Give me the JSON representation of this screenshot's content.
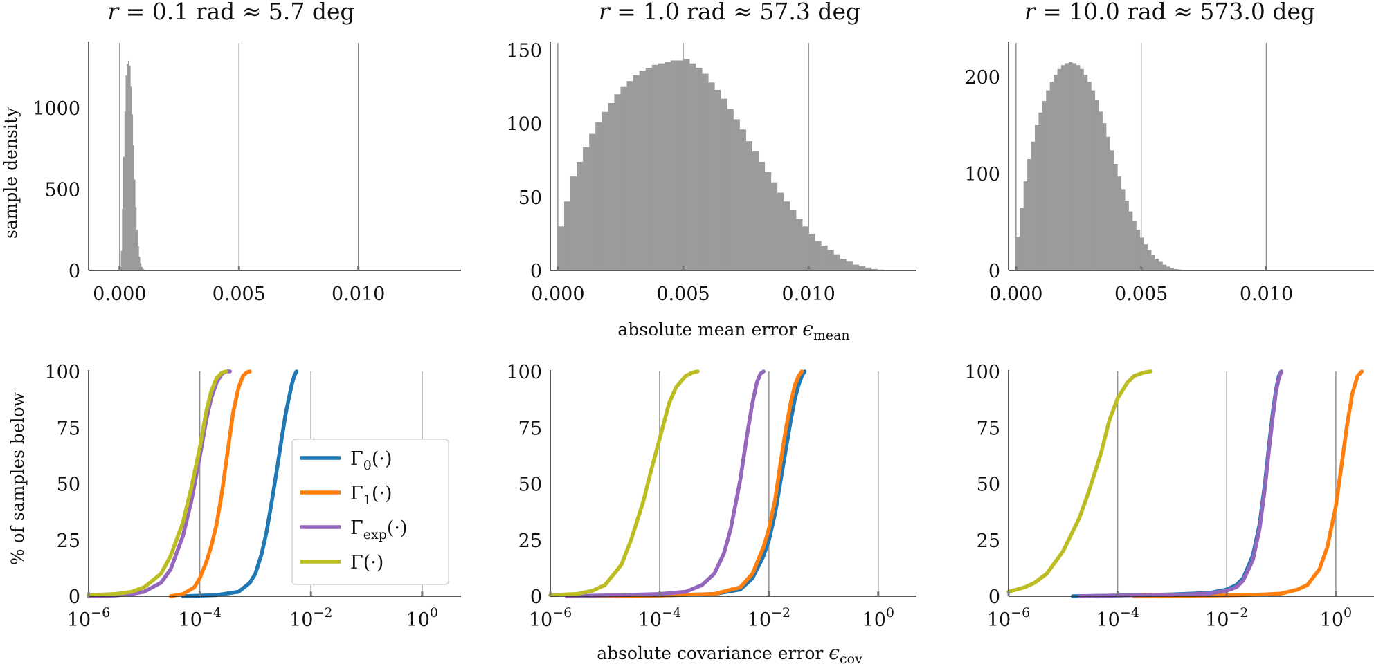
{
  "figure": {
    "shared_xlabel_top": "absolute mean error ",
    "shared_xlabel_top_symbol": "ϵ",
    "shared_xlabel_top_sub": "mean",
    "shared_xlabel_bottom": "absolute covariance error ",
    "shared_xlabel_bottom_symbol": "ϵ",
    "shared_xlabel_bottom_sub": "cov",
    "ylabel_top": "sample density",
    "ylabel_bottom": "% of samples below"
  },
  "colors": {
    "bar": "#9b9b9b",
    "gamma0": "#1f77b4",
    "gamma1": "#ff7f0e",
    "gammaexp": "#9467bd",
    "gamma": "#bcbd22"
  },
  "columns": [
    {
      "title_var": "r",
      "title_rest": " = 0.1 rad ≈ 5.7 deg"
    },
    {
      "title_var": "r",
      "title_rest": " = 1.0 rad ≈ 57.3 deg"
    },
    {
      "title_var": "r",
      "title_rest": " = 10.0 rad ≈ 573.0 deg"
    }
  ],
  "legend": [
    {
      "main": "Γ",
      "sub": "0",
      "arg": "(·)",
      "color_key": "gamma0"
    },
    {
      "main": "Γ",
      "sub": "1",
      "arg": "(·)",
      "color_key": "gamma1"
    },
    {
      "main": "Γ",
      "sub": "exp",
      "arg": "(·)",
      "color_key": "gammaexp"
    },
    {
      "main": "Γ",
      "sub": "",
      "arg": "(·)",
      "color_key": "gamma"
    }
  ],
  "chart_data": [
    {
      "type": "bar",
      "panel": "top-left",
      "title": "r = 0.1 rad ≈ 5.7 deg",
      "ylabel": "sample density",
      "xlim": [
        -0.0013,
        0.0143
      ],
      "ylim": [
        0,
        1400
      ],
      "xticks": [
        0.0,
        0.005,
        0.01
      ],
      "xtick_labels": [
        "0.000",
        "0.005",
        "0.010"
      ],
      "yticks": [
        0,
        500,
        1000
      ],
      "ytick_labels": [
        "0",
        "500",
        "1000"
      ],
      "bin_width": 5e-05,
      "bin_start": 0.0,
      "values": [
        10,
        120,
        380,
        700,
        980,
        1200,
        1270,
        1290,
        1260,
        1130,
        960,
        770,
        560,
        390,
        250,
        150,
        85,
        45,
        22,
        10,
        5,
        2
      ]
    },
    {
      "type": "bar",
      "panel": "top-middle",
      "title": "r = 1.0 rad ≈ 57.3 deg",
      "ylabel": "",
      "xlim": [
        -0.0003,
        0.0143
      ],
      "ylim": [
        0,
        155
      ],
      "xticks": [
        0.0,
        0.005,
        0.01
      ],
      "xtick_labels": [
        "0.000",
        "0.005",
        "0.010"
      ],
      "yticks": [
        0,
        50,
        100,
        150
      ],
      "ytick_labels": [
        "0",
        "50",
        "100",
        "150"
      ],
      "bin_width": 0.00025,
      "bin_start": 0.0,
      "values": [
        30,
        47,
        64,
        74,
        84,
        93,
        101,
        108,
        114,
        120,
        125,
        129,
        133,
        136,
        138,
        140,
        141,
        142,
        143,
        143,
        144,
        141,
        138,
        134,
        128,
        123,
        117,
        110,
        103,
        96,
        88,
        81,
        74,
        67,
        60,
        53,
        47,
        41,
        35,
        30,
        25,
        20,
        17,
        14,
        11,
        8,
        6,
        4,
        3,
        2,
        1,
        0.6
      ]
    },
    {
      "type": "bar",
      "panel": "top-right",
      "title": "r = 10.0 rad ≈ 573.0 deg",
      "ylabel": "",
      "xlim": [
        -0.0003,
        0.0143
      ],
      "ylim": [
        0,
        235
      ],
      "xticks": [
        0.0,
        0.005,
        0.01
      ],
      "xtick_labels": [
        "0.000",
        "0.005",
        "0.010"
      ],
      "yticks": [
        0,
        100,
        200
      ],
      "ytick_labels": [
        "0",
        "100",
        "200"
      ],
      "bin_width": 0.00015,
      "bin_start": 0.0,
      "values": [
        35,
        65,
        92,
        115,
        133,
        150,
        163,
        175,
        186,
        195,
        202,
        208,
        212,
        214,
        215,
        214,
        212,
        208,
        202,
        195,
        186,
        176,
        164,
        152,
        138,
        124,
        110,
        97,
        84,
        72,
        61,
        51,
        42,
        34,
        27,
        21,
        16,
        12,
        9,
        6,
        4,
        2.5,
        1.5,
        1,
        0.5
      ]
    },
    {
      "type": "line",
      "panel": "bottom-left",
      "ylabel": "% of samples below",
      "xscale": "log",
      "xlim": [
        1e-06,
        5
      ],
      "ylim": [
        0,
        100
      ],
      "xticks": [
        1e-06,
        0.0001,
        0.01,
        1
      ],
      "xtick_base": "10",
      "xtick_exponents": [
        "−6",
        "−4",
        "−2",
        "0"
      ],
      "yticks": [
        0,
        25,
        50,
        75,
        100
      ],
      "ytick_labels": [
        "0",
        "25",
        "50",
        "75",
        "100"
      ],
      "series": [
        {
          "name": "Γ0(·)",
          "color_key": "gamma0",
          "x": [
            5e-05,
            0.0002,
            0.0005,
            0.0008,
            0.001,
            0.0013,
            0.0016,
            0.002,
            0.0025,
            0.003,
            0.0035,
            0.004,
            0.0045,
            0.005,
            0.0055
          ],
          "y": [
            0,
            0.5,
            2,
            6,
            10,
            19,
            29,
            43,
            58,
            71,
            81,
            88,
            94,
            98,
            100
          ]
        },
        {
          "name": "Γ1(·)",
          "color_key": "gamma1",
          "x": [
            3e-05,
            5e-05,
            8e-05,
            0.0001,
            0.00013,
            0.00016,
            0.0002,
            0.00025,
            0.0003,
            0.00035,
            0.0004,
            0.0005,
            0.0006,
            0.0007,
            0.0008
          ],
          "y": [
            0,
            1,
            4,
            8,
            15,
            22,
            32,
            46,
            60,
            72,
            82,
            93,
            98,
            99.6,
            100
          ]
        },
        {
          "name": "Γexp(·)",
          "color_key": "gammaexp",
          "x": [
            1e-06,
            3e-06,
            6e-06,
            1e-05,
            2e-05,
            3e-05,
            5e-05,
            7e-05,
            0.0001,
            0.00013,
            0.00016,
            0.0002,
            0.00025,
            0.0003,
            0.00035
          ],
          "y": [
            0,
            0.3,
            1,
            2,
            6,
            12,
            27,
            42,
            62,
            78,
            88,
            95,
            99,
            100,
            100
          ]
        },
        {
          "name": "Γ(·)",
          "color_key": "gamma",
          "x": [
            1e-06,
            3e-06,
            6e-06,
            1e-05,
            2e-05,
            3e-05,
            5e-05,
            7e-05,
            0.0001,
            0.00013,
            0.00016,
            0.0002,
            0.00025,
            0.0003
          ],
          "y": [
            0.5,
            1,
            2,
            4,
            10,
            18,
            33,
            48,
            66,
            82,
            91,
            97,
            99.5,
            100
          ]
        }
      ]
    },
    {
      "type": "line",
      "panel": "bottom-middle",
      "ylabel": "",
      "xscale": "log",
      "xlim": [
        1e-06,
        5
      ],
      "ylim": [
        0,
        100
      ],
      "xticks": [
        1e-06,
        0.0001,
        0.01,
        1
      ],
      "xtick_base": "10",
      "xtick_exponents": [
        "−6",
        "−4",
        "−2",
        "0"
      ],
      "yticks": [
        0,
        25,
        50,
        75,
        100
      ],
      "ytick_labels": [
        "0",
        "25",
        "50",
        "75",
        "100"
      ],
      "series": [
        {
          "name": "Γ0(·)",
          "color_key": "gamma0",
          "x": [
            2e-06,
            0.0001,
            0.001,
            0.003,
            0.005,
            0.008,
            0.01,
            0.013,
            0.016,
            0.02,
            0.025,
            0.03,
            0.035,
            0.04,
            0.045
          ],
          "y": [
            0,
            0.3,
            1,
            3,
            8,
            18,
            25,
            37,
            50,
            64,
            78,
            88,
            94,
            98,
            100
          ]
        },
        {
          "name": "Γ1(·)",
          "color_key": "gamma1",
          "x": [
            2e-06,
            0.0001,
            0.001,
            0.003,
            0.005,
            0.008,
            0.01,
            0.013,
            0.016,
            0.02,
            0.025,
            0.03,
            0.035,
            0.04
          ],
          "y": [
            0,
            0.3,
            1,
            4,
            10,
            22,
            30,
            43,
            58,
            73,
            86,
            94,
            98,
            100
          ]
        },
        {
          "name": "Γexp(·)",
          "color_key": "gammaexp",
          "x": [
            2e-06,
            2e-05,
            0.0001,
            0.0003,
            0.0006,
            0.001,
            0.0015,
            0.002,
            0.003,
            0.004,
            0.005,
            0.006,
            0.007,
            0.008
          ],
          "y": [
            0,
            0.5,
            1,
            2,
            5,
            10,
            19,
            30,
            52,
            72,
            86,
            95,
            99,
            100
          ]
        },
        {
          "name": "Γ(·)",
          "color_key": "gamma",
          "x": [
            1e-06,
            3e-06,
            6e-06,
            1e-05,
            2e-05,
            3e-05,
            5e-05,
            7e-05,
            0.0001,
            0.00015,
            0.0002,
            0.0003,
            0.0004,
            0.0005
          ],
          "y": [
            0.5,
            1,
            2.5,
            5,
            14,
            25,
            42,
            56,
            70,
            86,
            93,
            98,
            99.5,
            100
          ]
        }
      ]
    },
    {
      "type": "line",
      "panel": "bottom-right",
      "ylabel": "",
      "xscale": "log",
      "xlim": [
        1e-06,
        5
      ],
      "ylim": [
        0,
        100
      ],
      "xticks": [
        1e-06,
        0.0001,
        0.01,
        1
      ],
      "xtick_base": "10",
      "xtick_exponents": [
        "−6",
        "−4",
        "−2",
        "0"
      ],
      "yticks": [
        0,
        25,
        50,
        75,
        100
      ],
      "ytick_labels": [
        "0",
        "25",
        "50",
        "75",
        "100"
      ],
      "series": [
        {
          "name": "Γ0(·)",
          "color_key": "gamma0",
          "x": [
            1.5e-05,
            0.0001,
            0.001,
            0.005,
            0.01,
            0.015,
            0.02,
            0.03,
            0.04,
            0.05,
            0.06,
            0.07,
            0.08,
            0.09,
            0.1
          ],
          "y": [
            0,
            0.3,
            0.8,
            1.5,
            3,
            5,
            8,
            18,
            32,
            50,
            68,
            82,
            92,
            98,
            100
          ]
        },
        {
          "name": "Γ1(·)",
          "color_key": "gamma1",
          "x": [
            0.0002,
            0.005,
            0.02,
            0.05,
            0.1,
            0.2,
            0.3,
            0.5,
            0.7,
            1.0,
            1.3,
            1.6,
            2.0,
            2.5,
            3.0
          ],
          "y": [
            0,
            0.3,
            0.5,
            0.8,
            1.2,
            3,
            5,
            12,
            22,
            40,
            60,
            76,
            90,
            98,
            100
          ]
        },
        {
          "name": "Γexp(·)",
          "color_key": "gammaexp",
          "x": [
            2e-05,
            0.0001,
            0.001,
            0.005,
            0.01,
            0.015,
            0.02,
            0.03,
            0.04,
            0.05,
            0.06,
            0.07,
            0.08,
            0.09,
            0.1
          ],
          "y": [
            0,
            0.3,
            0.6,
            1.2,
            2.5,
            4,
            7,
            16,
            30,
            48,
            66,
            80,
            91,
            97,
            100
          ]
        },
        {
          "name": "Γ(·)",
          "color_key": "gamma",
          "x": [
            1e-06,
            2e-06,
            3e-06,
            5e-06,
            1e-05,
            2e-05,
            3e-05,
            5e-05,
            7e-05,
            0.0001,
            0.00015,
            0.0002,
            0.0003,
            0.0004
          ],
          "y": [
            2,
            4,
            6,
            10,
            20,
            35,
            47,
            64,
            78,
            88,
            95,
            98,
            99.5,
            100
          ]
        }
      ]
    }
  ]
}
